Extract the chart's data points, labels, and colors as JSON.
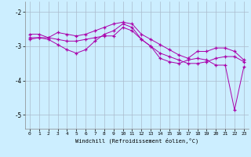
{
  "xlabel": "Windchill (Refroidissement éolien,°C)",
  "bg_color": "#cceeff",
  "line_color": "#aa00aa",
  "ylim": [
    -5.4,
    -1.7
  ],
  "xlim": [
    -0.5,
    23.5
  ],
  "yticks": [
    -5,
    -4,
    -3,
    -2
  ],
  "xticks": [
    0,
    1,
    2,
    3,
    4,
    5,
    6,
    7,
    8,
    9,
    10,
    11,
    12,
    13,
    14,
    15,
    16,
    17,
    18,
    19,
    20,
    21,
    22,
    23
  ],
  "line1_x": [
    0,
    1,
    2,
    3,
    4,
    5,
    6,
    7,
    8,
    9,
    10,
    11,
    12,
    13,
    14,
    15,
    16,
    17,
    18,
    19,
    20,
    21,
    22,
    23
  ],
  "line1_y": [
    -2.65,
    -2.65,
    -2.75,
    -2.8,
    -2.85,
    -2.85,
    -2.8,
    -2.75,
    -2.7,
    -2.7,
    -2.45,
    -2.55,
    -2.8,
    -3.0,
    -3.2,
    -3.3,
    -3.4,
    -3.5,
    -3.5,
    -3.45,
    -3.35,
    -3.3,
    -3.3,
    -3.45
  ],
  "line2_x": [
    0,
    1,
    2,
    3,
    4,
    5,
    6,
    7,
    8,
    9,
    10,
    11,
    12,
    13,
    14,
    15,
    16,
    17,
    18,
    19,
    20,
    21,
    22,
    23
  ],
  "line2_y": [
    -2.8,
    -2.75,
    -2.75,
    -2.6,
    -2.65,
    -2.7,
    -2.65,
    -2.55,
    -2.45,
    -2.35,
    -2.3,
    -2.35,
    -2.65,
    -2.8,
    -2.95,
    -3.1,
    -3.25,
    -3.35,
    -3.15,
    -3.15,
    -3.05,
    -3.05,
    -3.15,
    -3.4
  ],
  "line3_x": [
    0,
    1,
    2,
    3,
    4,
    5,
    6,
    7,
    8,
    9,
    10,
    11,
    12,
    13,
    14,
    15,
    16,
    17,
    18,
    19,
    20,
    21,
    22,
    23
  ],
  "line3_y": [
    -2.75,
    -2.75,
    -2.8,
    -2.95,
    -3.1,
    -3.2,
    -3.1,
    -2.85,
    -2.65,
    -2.55,
    -2.35,
    -2.45,
    -2.8,
    -3.0,
    -3.35,
    -3.45,
    -3.5,
    -3.4,
    -3.35,
    -3.4,
    -3.55,
    -3.55,
    -4.85,
    -3.6
  ]
}
